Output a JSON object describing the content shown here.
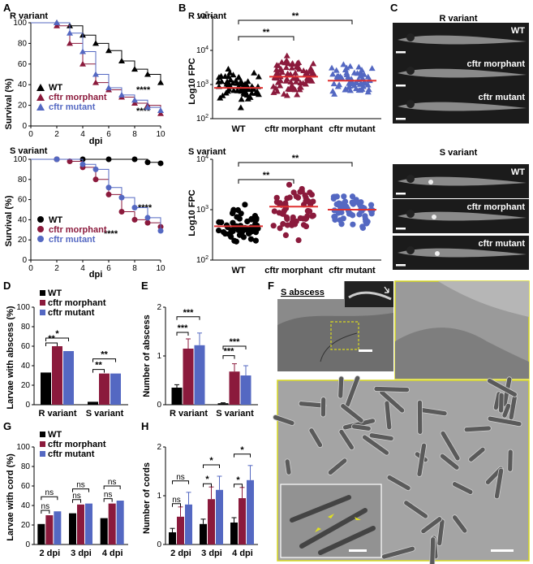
{
  "colors": {
    "wt": "#000000",
    "morphant": "#8b1a3c",
    "mutant": "#5468c2",
    "mean_line": "#e03030",
    "yellow": "#d8d820"
  },
  "panels": {
    "A": {
      "label": "A",
      "top_title": "R variant",
      "bottom_title": "S variant",
      "ylabel": "Survival (%)",
      "xlabel": "dpi",
      "sig_top": "****",
      "sig_bottom": "****",
      "legend": [
        "WT",
        "cftr morphant",
        "cftr mutant"
      ],
      "yticks": [
        "0",
        "20",
        "40",
        "60",
        "80",
        "100"
      ],
      "xticks": [
        "0",
        "2",
        "4",
        "6",
        "8",
        "10"
      ]
    },
    "B": {
      "label": "B",
      "top_title": "R variant",
      "bottom_title": "S variant",
      "ylabel": "Log10 FPC",
      "sig": "**",
      "groups": [
        "WT",
        "cftr morphant",
        "cftr mutant"
      ],
      "top_yticks": [
        "10^2",
        "10^3",
        "10^4",
        "10^5"
      ],
      "bottom_yticks": [
        "10^2",
        "10^3",
        "10^4"
      ]
    },
    "C": {
      "label": "C",
      "top_title": "R variant",
      "bottom_title": "S variant",
      "image_labels_top": [
        "WT",
        "cftr morphant",
        "cftr mutant"
      ],
      "image_labels_bottom": [
        "WT",
        "cftr morphant",
        "cftr mutant"
      ]
    },
    "D": {
      "label": "D",
      "ylabel": "Larvae with abscess (%)",
      "legend": [
        "WT",
        "cftr morphant",
        "cftr mutant"
      ],
      "yticks": [
        "0",
        "20",
        "40",
        "60",
        "80",
        "100"
      ],
      "sig": [
        "*",
        "**",
        "**",
        "**"
      ]
    },
    "E": {
      "label": "E",
      "ylabel": "Number of abscess",
      "yticks": [
        "0",
        "1",
        "2"
      ],
      "sig": "***"
    },
    "F": {
      "label": "F",
      "title": "S abscess"
    },
    "G": {
      "label": "G",
      "ylabel": "Larvae with cord (%)",
      "legend": [
        "WT",
        "cftr morphant",
        "cftr mutant"
      ],
      "yticks": [
        "0",
        "20",
        "40",
        "60",
        "80",
        "100"
      ],
      "ns": "ns"
    },
    "H": {
      "label": "H",
      "ylabel": "Number of cords",
      "yticks": [
        "0",
        "1",
        "2"
      ],
      "sig": "*",
      "ns": "ns"
    }
  },
  "chart_data": [
    {
      "id": "A-top",
      "type": "line",
      "title": "R variant",
      "xlabel": "dpi",
      "ylabel": "Survival (%)",
      "xlim": [
        0,
        10
      ],
      "ylim": [
        0,
        100
      ],
      "series": [
        {
          "name": "WT",
          "points": [
            [
              0,
              100
            ],
            [
              2,
              100
            ],
            [
              3,
              97
            ],
            [
              4,
              88
            ],
            [
              5,
              80
            ],
            [
              6,
              73
            ],
            [
              7,
              63
            ],
            [
              8,
              55
            ],
            [
              9,
              50
            ],
            [
              10,
              42
            ]
          ]
        },
        {
          "name": "cftr morphant",
          "points": [
            [
              0,
              100
            ],
            [
              2,
              97
            ],
            [
              3,
              80
            ],
            [
              4,
              60
            ],
            [
              5,
              42
            ],
            [
              6,
              35
            ],
            [
              7,
              28
            ],
            [
              8,
              22
            ],
            [
              9,
              20
            ],
            [
              10,
              12
            ]
          ]
        },
        {
          "name": "cftr mutant",
          "points": [
            [
              0,
              100
            ],
            [
              2,
              100
            ],
            [
              3,
              90
            ],
            [
              4,
              72
            ],
            [
              5,
              50
            ],
            [
              6,
              37
            ],
            [
              7,
              30
            ],
            [
              8,
              25
            ],
            [
              9,
              18
            ],
            [
              10,
              15
            ]
          ]
        }
      ]
    },
    {
      "id": "A-bottom",
      "type": "line",
      "title": "S variant",
      "xlabel": "dpi",
      "ylabel": "Survival (%)",
      "xlim": [
        0,
        10
      ],
      "ylim": [
        0,
        100
      ],
      "series": [
        {
          "name": "WT",
          "points": [
            [
              0,
              100
            ],
            [
              2,
              100
            ],
            [
              4,
              100
            ],
            [
              6,
              100
            ],
            [
              8,
              100
            ],
            [
              9,
              97
            ],
            [
              10,
              96
            ]
          ]
        },
        {
          "name": "cftr morphant",
          "points": [
            [
              0,
              100
            ],
            [
              2,
              100
            ],
            [
              3,
              98
            ],
            [
              4,
              92
            ],
            [
              5,
              80
            ],
            [
              6,
              65
            ],
            [
              7,
              48
            ],
            [
              8,
              40
            ],
            [
              9,
              37
            ],
            [
              10,
              33
            ]
          ]
        },
        {
          "name": "cftr mutant",
          "points": [
            [
              0,
              100
            ],
            [
              2,
              100
            ],
            [
              4,
              95
            ],
            [
              5,
              90
            ],
            [
              6,
              72
            ],
            [
              7,
              62
            ],
            [
              8,
              52
            ],
            [
              9,
              42
            ],
            [
              10,
              29
            ]
          ]
        }
      ]
    },
    {
      "id": "B-top",
      "type": "scatter",
      "title": "R variant",
      "ylabel": "Log10 FPC",
      "log_y": true,
      "ylim": [
        100,
        100000
      ],
      "categories": [
        "WT",
        "cftr morphant",
        "cftr mutant"
      ],
      "n_points": [
        60,
        80,
        60
      ],
      "means": [
        800,
        1700,
        1300
      ],
      "ranges": [
        [
          200,
          3800
        ],
        [
          250,
          12000
        ],
        [
          180,
          7500
        ]
      ]
    },
    {
      "id": "B-bottom",
      "type": "scatter",
      "title": "S variant",
      "ylabel": "Log10 FPC",
      "log_y": true,
      "ylim": [
        100,
        10000
      ],
      "categories": [
        "WT",
        "cftr morphant",
        "cftr mutant"
      ],
      "n_points": [
        55,
        60,
        55
      ],
      "means": [
        470,
        1150,
        1000
      ],
      "ranges": [
        [
          180,
          1700
        ],
        [
          160,
          3800
        ],
        [
          200,
          2800
        ]
      ]
    },
    {
      "id": "D",
      "type": "bar",
      "ylabel": "Larvae with abscess (%)",
      "ylim": [
        0,
        100
      ],
      "categories": [
        "R variant",
        "S variant"
      ],
      "series": [
        {
          "name": "WT",
          "values": [
            33,
            3
          ]
        },
        {
          "name": "cftr morphant",
          "values": [
            60,
            32
          ]
        },
        {
          "name": "cftr mutant",
          "values": [
            55,
            32
          ]
        }
      ]
    },
    {
      "id": "E",
      "type": "bar",
      "ylabel": "Number of abscess",
      "ylim": [
        0,
        2
      ],
      "categories": [
        "R variant",
        "S variant"
      ],
      "series": [
        {
          "name": "WT",
          "values": [
            0.35,
            0.03
          ],
          "errors": [
            0.06,
            0.01
          ]
        },
        {
          "name": "cftr morphant",
          "values": [
            1.15,
            0.68
          ],
          "errors": [
            0.2,
            0.16
          ]
        },
        {
          "name": "cftr mutant",
          "values": [
            1.22,
            0.6
          ],
          "errors": [
            0.25,
            0.2
          ]
        }
      ]
    },
    {
      "id": "G",
      "type": "bar",
      "ylabel": "Larvae with cord (%)",
      "ylim": [
        0,
        100
      ],
      "categories": [
        "2 dpi",
        "3 dpi",
        "4 dpi"
      ],
      "series": [
        {
          "name": "WT",
          "values": [
            21,
            32,
            27
          ]
        },
        {
          "name": "cftr morphant",
          "values": [
            30,
            41,
            42
          ]
        },
        {
          "name": "cftr mutant",
          "values": [
            34,
            42,
            45
          ]
        }
      ]
    },
    {
      "id": "H",
      "type": "bar",
      "ylabel": "Number of cords",
      "ylim": [
        0,
        2
      ],
      "categories": [
        "2 dpi",
        "3 dpi",
        "4 dpi"
      ],
      "series": [
        {
          "name": "WT",
          "values": [
            0.25,
            0.42,
            0.45
          ],
          "errors": [
            0.08,
            0.1,
            0.1
          ]
        },
        {
          "name": "cftr morphant",
          "values": [
            0.57,
            0.93,
            0.95
          ],
          "errors": [
            0.2,
            0.25,
            0.22
          ]
        },
        {
          "name": "cftr mutant",
          "values": [
            0.82,
            1.12,
            1.32
          ],
          "errors": [
            0.25,
            0.28,
            0.3
          ]
        }
      ]
    }
  ]
}
